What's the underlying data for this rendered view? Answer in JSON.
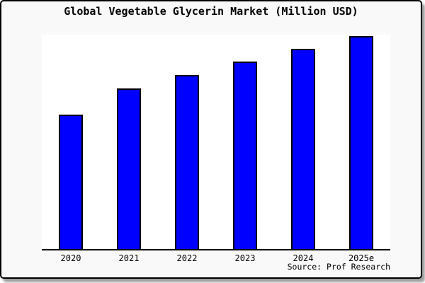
{
  "window": {
    "background_color": "#f9f9f9",
    "border_color": "#000000"
  },
  "chart_data": {
    "type": "bar",
    "title": "Global Vegetable Glycerin Market (Million USD)",
    "categories": [
      "2020",
      "2021",
      "2022",
      "2023",
      "2024",
      "2025e"
    ],
    "values": [
      190,
      227,
      246,
      265,
      283,
      301
    ],
    "values_note": "relative bar heights in screen pixels; chart displays no numeric value axis, gridlines or data labels",
    "xlabel": "",
    "ylabel": "",
    "legend": "none",
    "grid": false,
    "plot_background": "#ffffff",
    "bar_color": "#0000ff",
    "bar_border_color": "#000000",
    "axis_line_color": "#000000",
    "source": "Source: Prof Research"
  }
}
